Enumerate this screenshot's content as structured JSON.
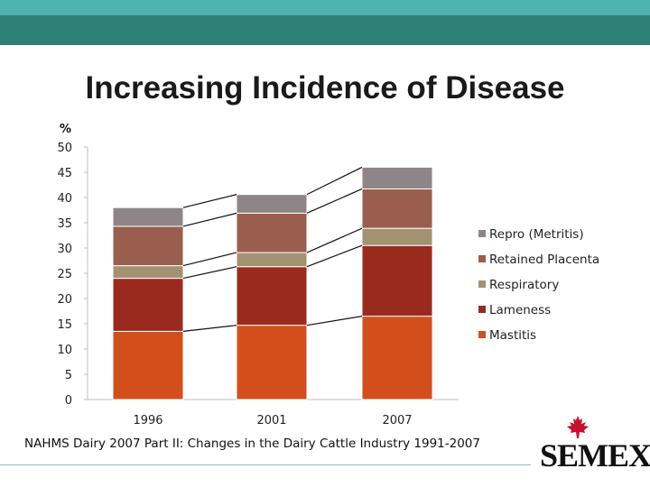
{
  "header": {
    "title": "Increasing Incidence of Disease"
  },
  "footer": {
    "source": "NAHMS Dairy 2007 Part II: Changes in the Dairy Cattle Industry 1991-2007"
  },
  "logo": {
    "text": "SEMEX",
    "mark": "®",
    "icon": "maple-leaf-icon"
  },
  "colors": {
    "band_light": "#4fb3b0",
    "band_dark": "#2e8076",
    "Mastitis": "#d24f1c",
    "Lameness": "#9b2a1e",
    "Respiratory": "#a39272",
    "Retained Placenta": "#9a5e4e",
    "Repro (Metritis)": "#8e8588"
  },
  "chart_data": {
    "type": "bar",
    "stacked": true,
    "title": "",
    "ylabel": "%",
    "xlabel": "",
    "ylim": [
      0,
      50
    ],
    "yticks": [
      0,
      5,
      10,
      15,
      20,
      25,
      30,
      35,
      40,
      45,
      50
    ],
    "categories": [
      "1996",
      "2001",
      "2007"
    ],
    "series": [
      {
        "name": "Mastitis",
        "values": [
          13.5,
          14.7,
          16.5
        ]
      },
      {
        "name": "Lameness",
        "values": [
          10.5,
          11.6,
          14.0
        ]
      },
      {
        "name": "Respiratory",
        "values": [
          2.5,
          2.8,
          3.4
        ]
      },
      {
        "name": "Retained Placenta",
        "values": [
          7.8,
          7.8,
          7.8
        ]
      },
      {
        "name": "Repro (Metritis)",
        "values": [
          3.7,
          3.7,
          4.3
        ]
      }
    ],
    "legend": {
      "placement": "right",
      "order": [
        "Repro (Metritis)",
        "Retained Placenta",
        "Respiratory",
        "Lameness",
        "Mastitis"
      ]
    },
    "connector_lines": true
  }
}
